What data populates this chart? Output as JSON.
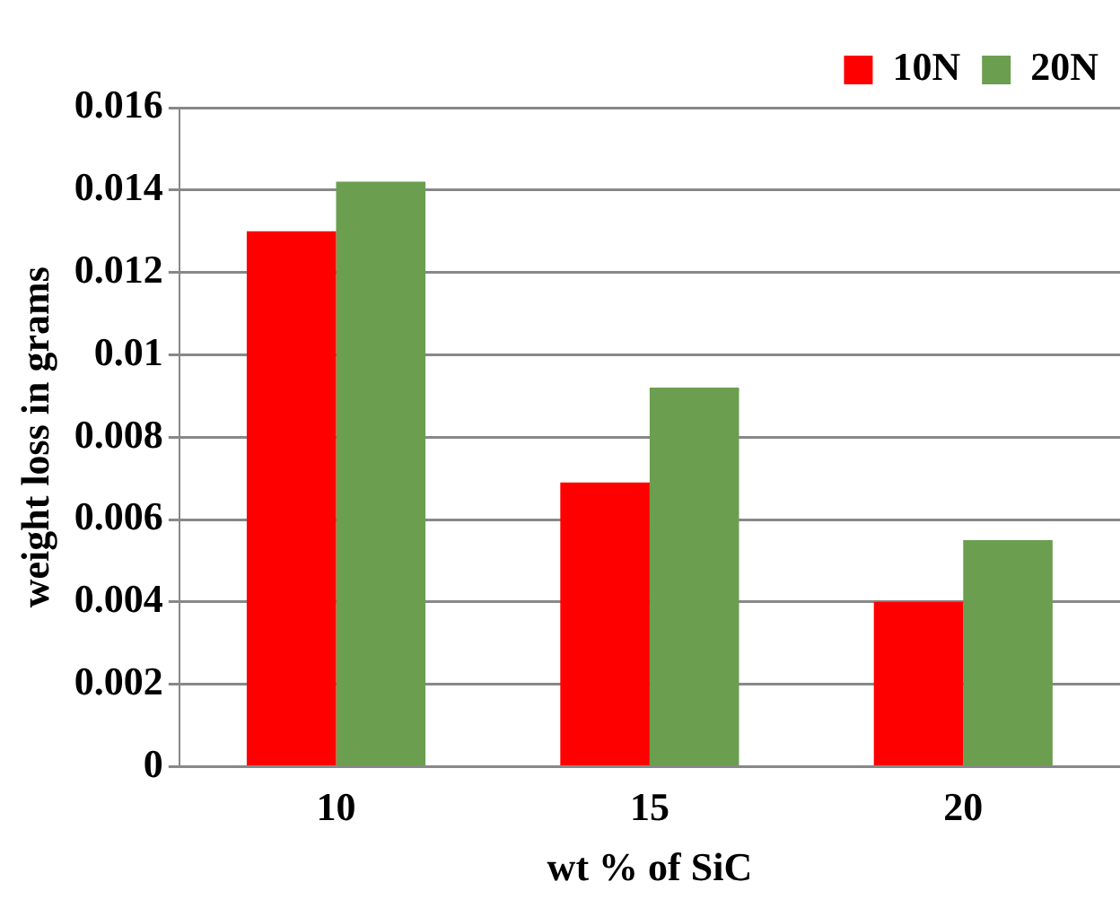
{
  "chart_data": {
    "type": "bar",
    "xlabel": "wt % of SiC",
    "ylabel": "weight loss in grams",
    "categories": [
      "10",
      "15",
      "20"
    ],
    "series": [
      {
        "name": "10N",
        "color": "#ff0000",
        "values": [
          0.013,
          0.0069,
          0.004
        ]
      },
      {
        "name": "20N",
        "color": "#6b9e4f",
        "values": [
          0.0142,
          0.0092,
          0.0055
        ]
      }
    ],
    "ylim": [
      0,
      0.016
    ],
    "yticks": [
      0,
      0.002,
      0.004,
      0.006,
      0.008,
      0.01,
      0.012,
      0.014,
      0.016
    ],
    "grid": "y",
    "legend": "top right"
  }
}
